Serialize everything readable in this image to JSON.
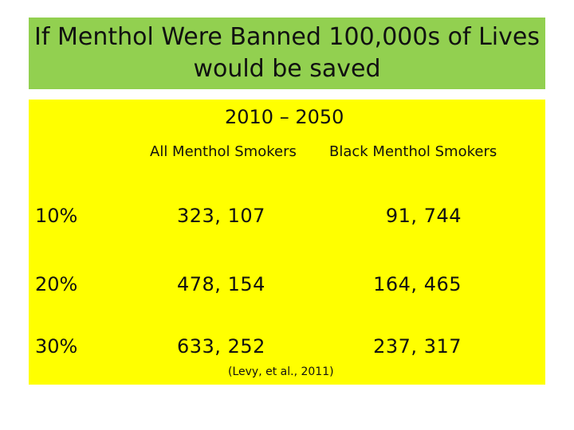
{
  "title": "If Menthol Were Banned 100,000s of Lives would be saved",
  "period": "2010 – 2050",
  "columns": {
    "all": "All Menthol Smokers",
    "black": "Black Menthol Smokers"
  },
  "rows": [
    {
      "pct": "10%",
      "all": "323, 107",
      "black": "91, 744"
    },
    {
      "pct": "20%",
      "all": "478, 154",
      "black": "164, 465"
    },
    {
      "pct": "30%",
      "all": "633, 252",
      "black": "237, 317"
    }
  ],
  "citation": "(Levy, et al., 2011)",
  "colors": {
    "title_bg": "#92d050",
    "content_bg": "#ffff00",
    "text": "#111111"
  }
}
